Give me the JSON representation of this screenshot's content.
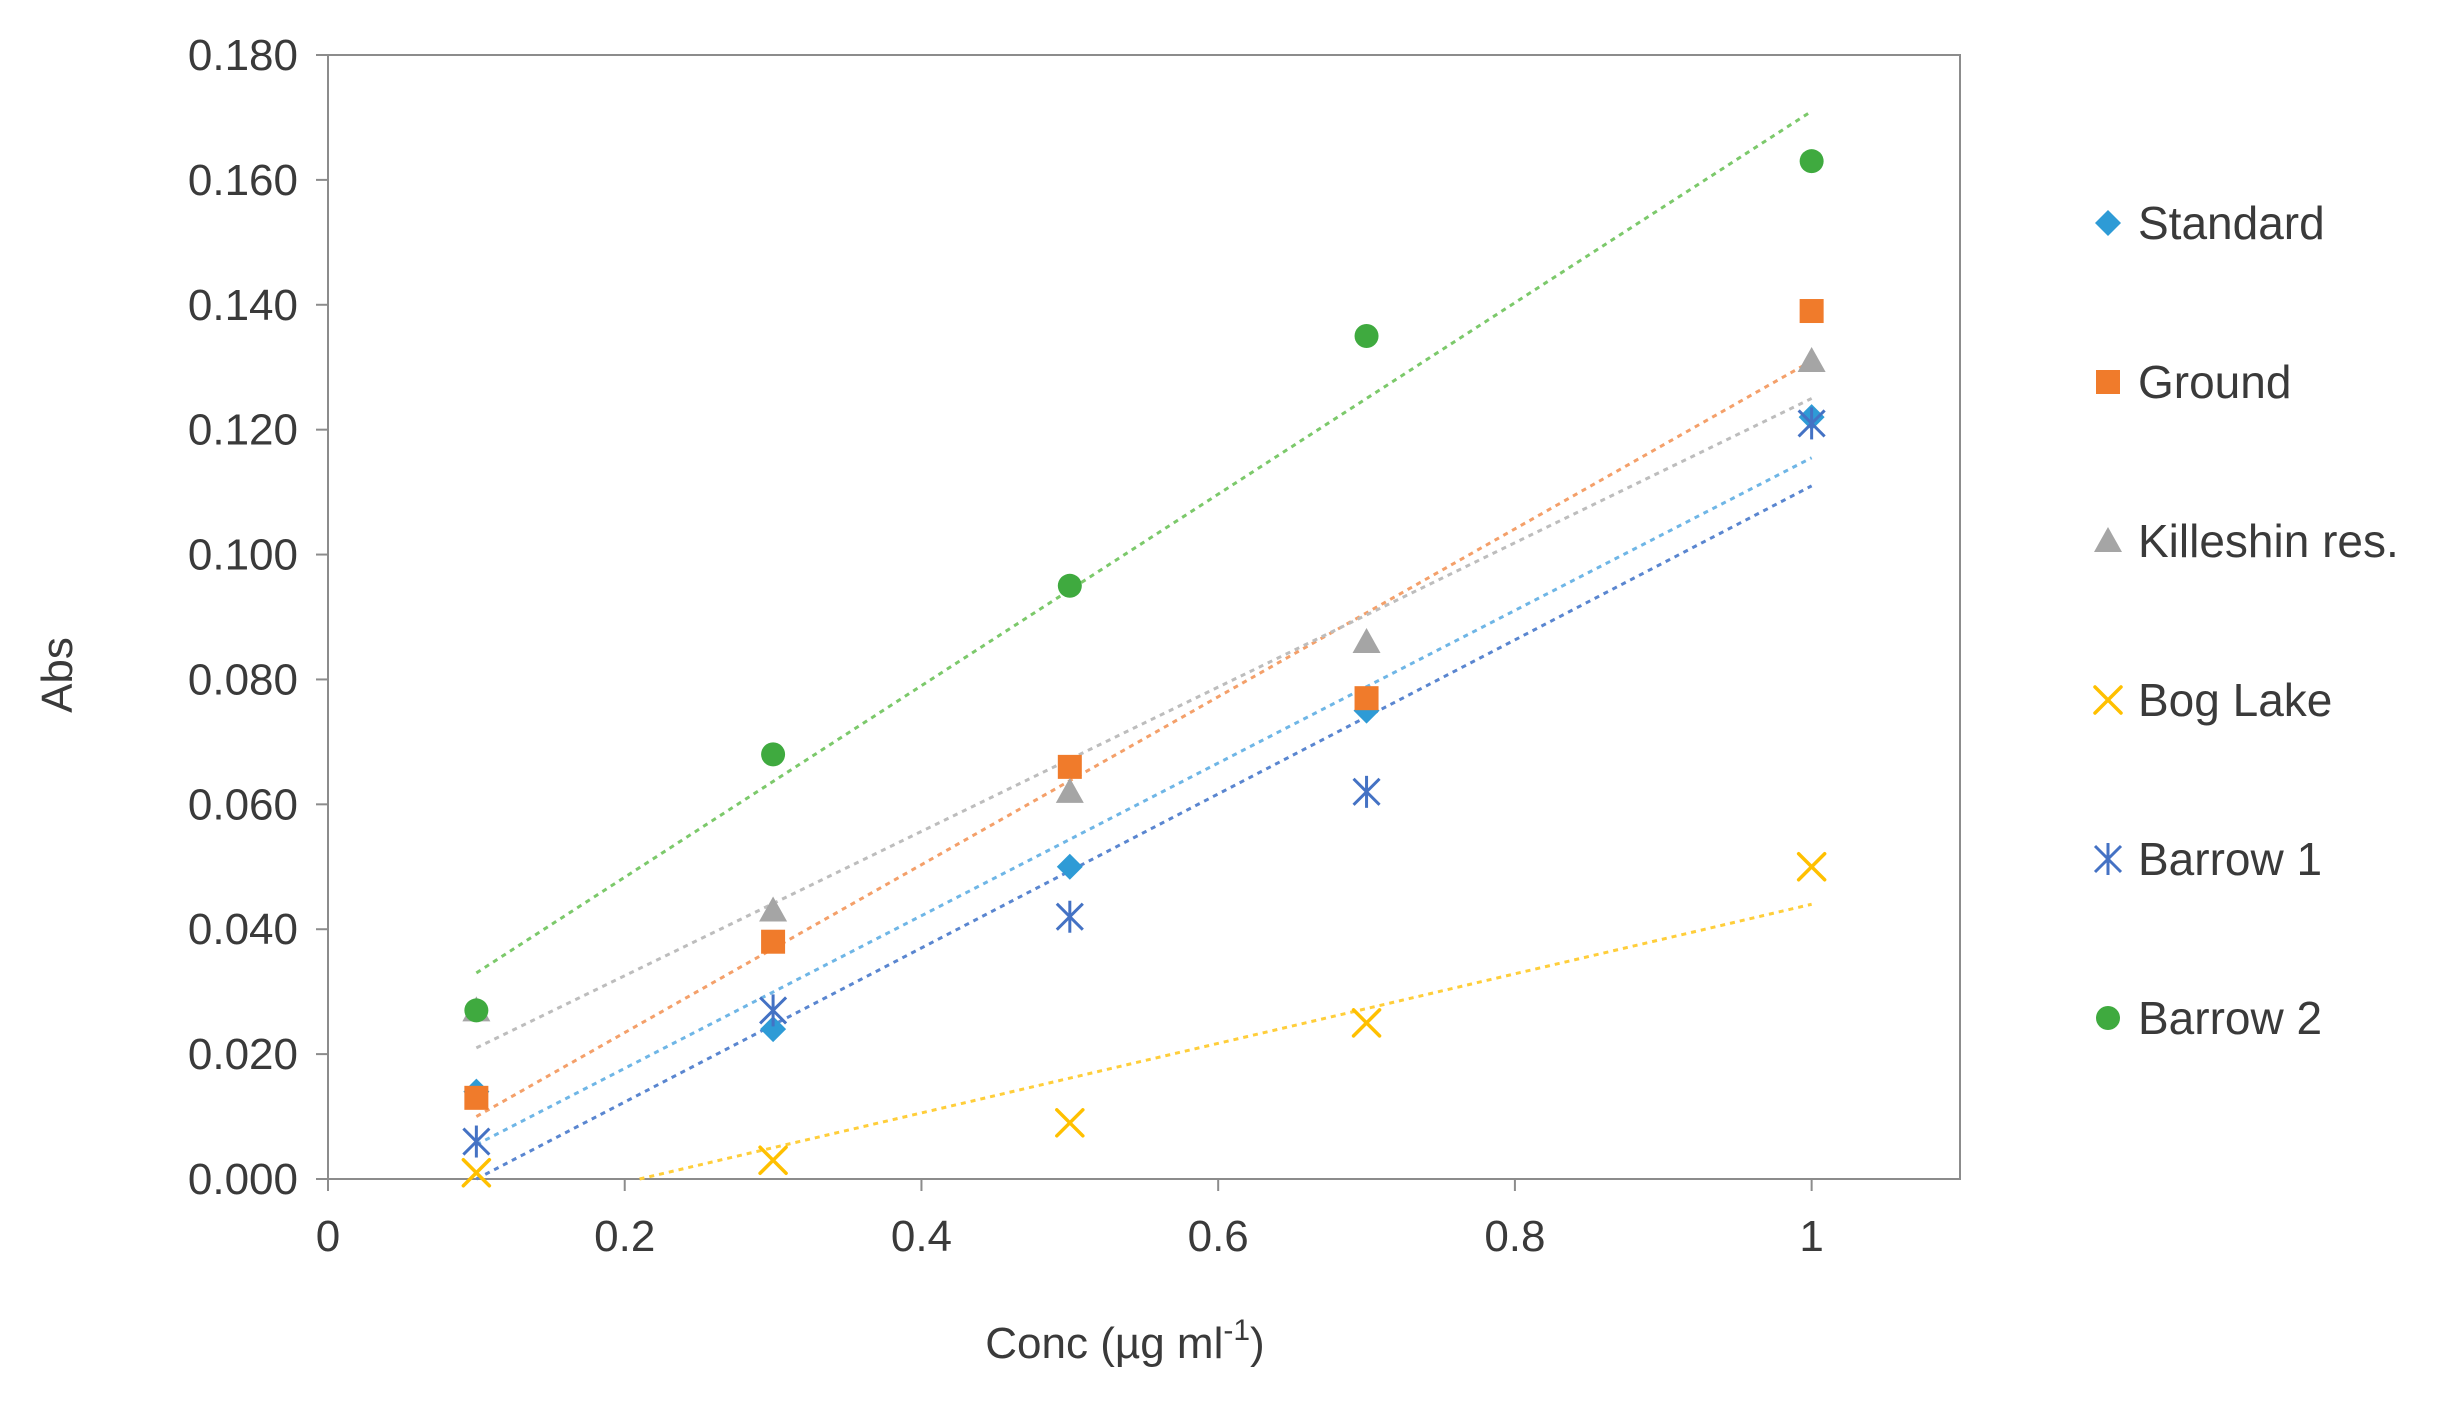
{
  "chart_data": {
    "type": "scatter",
    "title": "",
    "xlabel_main": "Conc (µg ml",
    "xlabel_sup": "-1",
    "xlabel_end": ")",
    "ylabel": "Abs",
    "xlim": [
      0,
      1.1
    ],
    "ylim": [
      0,
      0.18
    ],
    "xticks": [
      0,
      0.2,
      0.4,
      0.6,
      0.8,
      1
    ],
    "xtick_labels": [
      "0",
      "0.2",
      "0.4",
      "0.6",
      "0.8",
      "1"
    ],
    "yticks": [
      0,
      0.02,
      0.04,
      0.06,
      0.08,
      0.1,
      0.12,
      0.14,
      0.16,
      0.18
    ],
    "ytick_labels": [
      "0.000",
      "0.020",
      "0.040",
      "0.060",
      "0.080",
      "0.100",
      "0.120",
      "0.140",
      "0.160",
      "0.180"
    ],
    "grid": false,
    "legend_position": "right",
    "trendlines": "linear, dotted",
    "series": [
      {
        "name": "Standard",
        "marker": "diamond",
        "color": "#2E9BD6",
        "trend_color": "#6FB6E6",
        "x": [
          0.1,
          0.3,
          0.5,
          0.7,
          1.0
        ],
        "y": [
          0.014,
          0.024,
          0.05,
          0.075,
          0.122
        ],
        "trend_x": [
          0.1,
          1.0
        ],
        "trend_y": [
          0.0055,
          0.1155
        ]
      },
      {
        "name": "Ground",
        "marker": "square",
        "color": "#F07B2B",
        "trend_color": "#F4A06A",
        "x": [
          0.1,
          0.3,
          0.5,
          0.7,
          1.0
        ],
        "y": [
          0.013,
          0.038,
          0.066,
          0.077,
          0.139
        ],
        "trend_x": [
          0.1,
          1.0
        ],
        "trend_y": [
          0.01,
          0.131
        ]
      },
      {
        "name": "Killeshin res.",
        "marker": "triangle",
        "color": "#A5A5A5",
        "trend_color": "#BDBDBD",
        "x": [
          0.1,
          0.3,
          0.5,
          0.7,
          1.0
        ],
        "y": [
          0.027,
          0.043,
          0.062,
          0.086,
          0.131
        ],
        "trend_x": [
          0.1,
          1.0
        ],
        "trend_y": [
          0.021,
          0.125
        ]
      },
      {
        "name": "Bog Lake",
        "marker": "x",
        "color": "#FFC000",
        "trend_color": "#FFCE3A",
        "x": [
          0.1,
          0.3,
          0.5,
          0.7,
          1.0
        ],
        "y": [
          0.001,
          0.003,
          0.009,
          0.025,
          0.05
        ],
        "trend_x": [
          0.21,
          1.0
        ],
        "trend_y": [
          0.0,
          0.044
        ]
      },
      {
        "name": "Barrow 1",
        "marker": "asterisk",
        "color": "#4472C4",
        "trend_color": "#5A86D0",
        "x": [
          0.1,
          0.3,
          0.5,
          0.7,
          1.0
        ],
        "y": [
          0.006,
          0.027,
          0.042,
          0.062,
          0.121
        ],
        "trend_x": [
          0.1,
          1.0
        ],
        "trend_y": [
          0.0,
          0.111
        ]
      },
      {
        "name": "Barrow 2",
        "marker": "circle",
        "color": "#3FAA3F",
        "trend_color": "#7CC96B",
        "x": [
          0.1,
          0.3,
          0.5,
          0.7,
          1.0
        ],
        "y": [
          0.027,
          0.068,
          0.095,
          0.135,
          0.163
        ],
        "trend_x": [
          0.1,
          1.0
        ],
        "trend_y": [
          0.033,
          0.171
        ]
      }
    ]
  }
}
